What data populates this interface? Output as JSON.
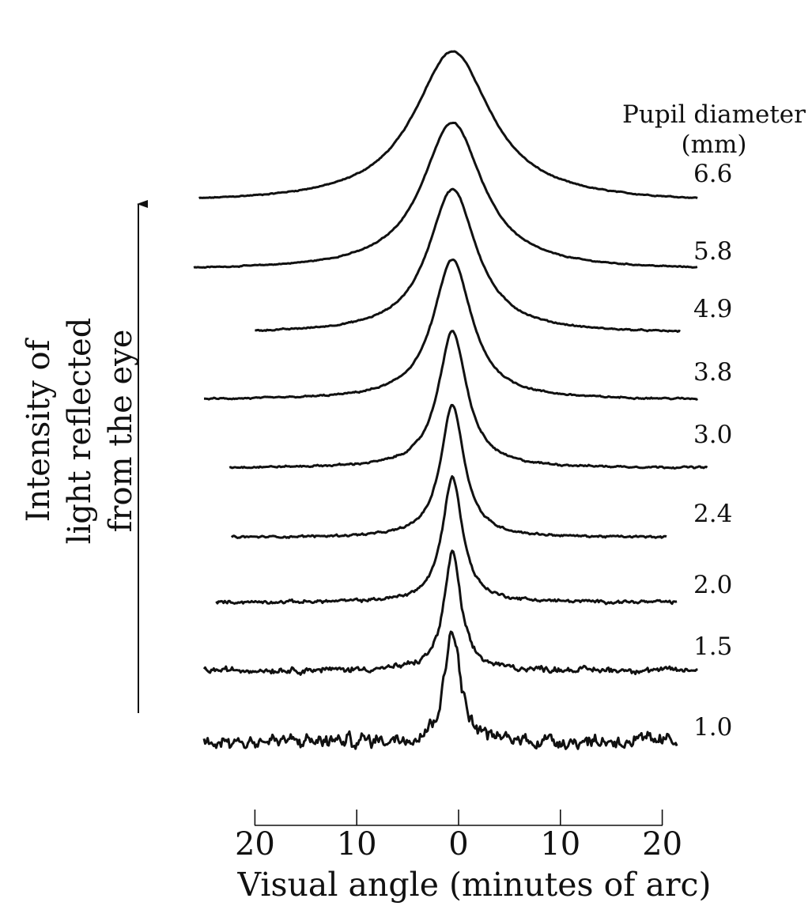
{
  "chart_data": {
    "type": "line",
    "title": "",
    "xlabel": "Visual angle (minutes of arc)",
    "ylabel": "Intensity of light reflected from the eye",
    "ylabel_lines": [
      "Intensity of",
      "light reflected",
      "from the eye"
    ],
    "x_ticks": [
      -20,
      -10,
      0,
      10,
      20
    ],
    "x_tick_labels": [
      "20",
      "10",
      "0",
      "10",
      "20"
    ],
    "xlim": [
      -20,
      20
    ],
    "legend_title_lines": [
      "Pupil diameter",
      "(mm)"
    ],
    "grid": false,
    "series": [
      {
        "name": "6.6",
        "offset": 8,
        "width": 4.6,
        "x_start": -25.5,
        "x_end": 23.5,
        "noise": 0.04,
        "peak": 8.0
      },
      {
        "name": "5.8",
        "offset": 7,
        "width": 3.6,
        "x_start": -26.0,
        "x_end": 23.5,
        "noise": 0.04,
        "peak": 7.8
      },
      {
        "name": "4.9",
        "offset": 6,
        "width": 2.9,
        "x_start": -20.0,
        "x_end": 21.8,
        "noise": 0.05,
        "peak": 7.6
      },
      {
        "name": "3.8",
        "offset": 5,
        "width": 2.3,
        "x_start": -25.0,
        "x_end": 23.5,
        "noise": 0.06,
        "peak": 7.4
      },
      {
        "name": "3.0",
        "offset": 4,
        "width": 1.7,
        "x_start": -22.5,
        "x_end": 24.5,
        "noise": 0.07,
        "peak": 7.2
      },
      {
        "name": "2.4",
        "offset": 3,
        "width": 1.4,
        "x_start": -22.3,
        "x_end": 20.5,
        "noise": 0.08,
        "peak": 7.0
      },
      {
        "name": "2.0",
        "offset": 2,
        "width": 1.2,
        "x_start": -23.8,
        "x_end": 21.5,
        "noise": 0.12,
        "peak": 6.6
      },
      {
        "name": "1.5",
        "offset": 1,
        "width": 1.0,
        "x_start": -25.0,
        "x_end": 23.5,
        "noise": 0.22,
        "peak": 6.2
      },
      {
        "name": "1.0",
        "offset": 0,
        "width": 0.9,
        "x_start": -25.0,
        "x_end": 21.5,
        "noise": 0.55,
        "peak": 6.0
      }
    ]
  }
}
